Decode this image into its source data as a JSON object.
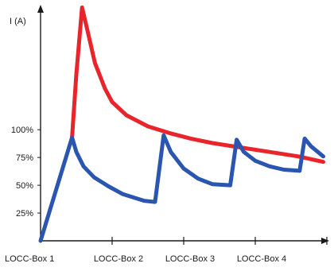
{
  "chart_data": {
    "type": "line",
    "ylabel": "I (A)",
    "xlabel": "",
    "x_categories": [
      "LOCC-Box 1",
      "LOCC-Box 2",
      "LOCC-Box 3",
      "LOCC-Box 4"
    ],
    "y_ticks": [
      {
        "label": "25%",
        "value": 25
      },
      {
        "label": "50%",
        "value": 50
      },
      {
        "label": "75%",
        "value": 75
      },
      {
        "label": "100%",
        "value": 100
      }
    ],
    "x_range": [
      0,
      4
    ],
    "y_range": [
      0,
      210
    ],
    "grid": false,
    "legend": "none",
    "series": [
      {
        "color": "#e8252b",
        "points": [
          [
            0.44,
            93
          ],
          [
            0.5,
            150
          ],
          [
            0.58,
            210
          ],
          [
            0.66,
            188
          ],
          [
            0.76,
            160
          ],
          [
            0.9,
            137
          ],
          [
            1.0,
            125
          ],
          [
            1.2,
            113
          ],
          [
            1.5,
            103
          ],
          [
            1.8,
            97
          ],
          [
            2.1,
            92
          ],
          [
            2.4,
            88
          ],
          [
            2.8,
            84
          ],
          [
            3.2,
            80
          ],
          [
            3.6,
            76
          ],
          [
            3.95,
            71
          ]
        ]
      },
      {
        "color": "#2a56b0",
        "points": [
          [
            0.0,
            0
          ],
          [
            0.44,
            93
          ],
          [
            0.5,
            80
          ],
          [
            0.6,
            67
          ],
          [
            0.75,
            57
          ],
          [
            0.95,
            49
          ],
          [
            1.15,
            42
          ],
          [
            1.3,
            39
          ],
          [
            1.45,
            36
          ],
          [
            1.6,
            35
          ],
          [
            1.72,
            95
          ],
          [
            1.82,
            80
          ],
          [
            2.0,
            65
          ],
          [
            2.2,
            56
          ],
          [
            2.4,
            51
          ],
          [
            2.65,
            50
          ],
          [
            2.74,
            91
          ],
          [
            2.84,
            80
          ],
          [
            3.0,
            72
          ],
          [
            3.2,
            67
          ],
          [
            3.4,
            64
          ],
          [
            3.62,
            63
          ],
          [
            3.69,
            92
          ],
          [
            3.78,
            85
          ],
          [
            3.95,
            76
          ]
        ]
      }
    ]
  }
}
